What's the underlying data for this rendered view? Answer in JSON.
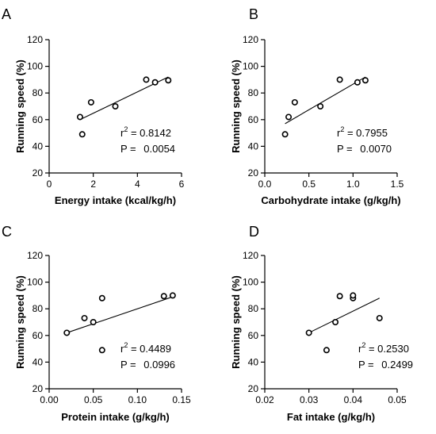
{
  "chart_data": [
    {
      "type": "scatter",
      "panel": "A",
      "xlabel": "Energy intake (kcal/kg/h)",
      "ylabel": "Running speed (%)",
      "xlim": [
        0,
        6
      ],
      "ylim": [
        20,
        120
      ],
      "xticks": [
        "0",
        "2",
        "4",
        "6"
      ],
      "yticks": [
        "20",
        "40",
        "60",
        "80",
        "100",
        "120"
      ],
      "points": [
        {
          "x": 1.4,
          "y": 62
        },
        {
          "x": 1.5,
          "y": 49
        },
        {
          "x": 1.9,
          "y": 73
        },
        {
          "x": 3.0,
          "y": 70
        },
        {
          "x": 4.4,
          "y": 90
        },
        {
          "x": 4.8,
          "y": 88
        },
        {
          "x": 5.4,
          "y": 89.5
        }
      ],
      "fit": {
        "x": [
          1.4,
          5.4
        ],
        "y": [
          60,
          92
        ]
      },
      "r2_label": "r",
      "r2_value": " = 0.8142",
      "p_label": "P = ",
      "p_value": "0.0054"
    },
    {
      "type": "scatter",
      "panel": "B",
      "xlabel": "Carbohydrate intake (g/kg/h)",
      "ylabel": "Running speed (%)",
      "xlim": [
        0,
        1.5
      ],
      "ylim": [
        20,
        120
      ],
      "xticks": [
        "0.0",
        "0.5",
        "1.0",
        "1.5"
      ],
      "yticks": [
        "20",
        "40",
        "60",
        "80",
        "100",
        "120"
      ],
      "points": [
        {
          "x": 0.23,
          "y": 49
        },
        {
          "x": 0.27,
          "y": 62
        },
        {
          "x": 0.34,
          "y": 73
        },
        {
          "x": 0.63,
          "y": 70
        },
        {
          "x": 0.85,
          "y": 90
        },
        {
          "x": 1.05,
          "y": 88
        },
        {
          "x": 1.14,
          "y": 89.5
        }
      ],
      "fit": {
        "x": [
          0.23,
          1.14
        ],
        "y": [
          57,
          92
        ]
      },
      "r2_label": "r",
      "r2_value": " = 0.7955",
      "p_label": "P = ",
      "p_value": "0.0070"
    },
    {
      "type": "scatter",
      "panel": "C",
      "xlabel": "Protein intake (g/kg/h)",
      "ylabel": "Running speed (%)",
      "xlim": [
        0,
        0.15
      ],
      "ylim": [
        20,
        120
      ],
      "xticks": [
        "0.00",
        "0.05",
        "0.10",
        "0.15"
      ],
      "yticks": [
        "20",
        "40",
        "60",
        "80",
        "100",
        "120"
      ],
      "points": [
        {
          "x": 0.02,
          "y": 62
        },
        {
          "x": 0.04,
          "y": 73
        },
        {
          "x": 0.05,
          "y": 70
        },
        {
          "x": 0.06,
          "y": 49
        },
        {
          "x": 0.06,
          "y": 88
        },
        {
          "x": 0.13,
          "y": 89.5
        },
        {
          "x": 0.14,
          "y": 90
        }
      ],
      "fit": {
        "x": [
          0.02,
          0.14
        ],
        "y": [
          62,
          89
        ]
      },
      "r2_label": "r",
      "r2_value": " = 0.4489",
      "p_label": "P = ",
      "p_value": "0.0996"
    },
    {
      "type": "scatter",
      "panel": "D",
      "xlabel": "Fat intake (g/kg/h)",
      "ylabel": "Running speed (%)",
      "xlim": [
        0.02,
        0.05
      ],
      "ylim": [
        20,
        120
      ],
      "xticks": [
        "0.02",
        "0.03",
        "0.04",
        "0.05"
      ],
      "yticks": [
        "20",
        "40",
        "60",
        "80",
        "100",
        "120"
      ],
      "points": [
        {
          "x": 0.03,
          "y": 62
        },
        {
          "x": 0.034,
          "y": 49
        },
        {
          "x": 0.036,
          "y": 70
        },
        {
          "x": 0.037,
          "y": 89.5
        },
        {
          "x": 0.04,
          "y": 88
        },
        {
          "x": 0.04,
          "y": 90
        },
        {
          "x": 0.046,
          "y": 73
        }
      ],
      "fit": {
        "x": [
          0.03,
          0.046
        ],
        "y": [
          62,
          88
        ]
      },
      "r2_label": "r",
      "r2_value": " = 0.2530",
      "p_label": "P = ",
      "p_value": "0.2499"
    }
  ]
}
